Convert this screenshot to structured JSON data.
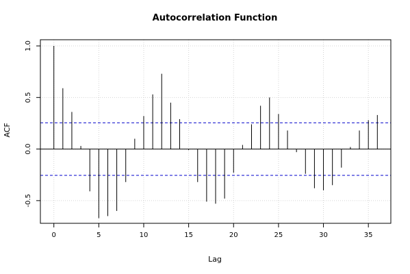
{
  "chart_data": {
    "type": "bar",
    "style": "spikes",
    "title": "Autocorrelation Function",
    "xlabel": "Lag",
    "ylabel": "ACF",
    "xlim": [
      -1.5,
      37.5
    ],
    "ylim": [
      -0.72,
      1.06
    ],
    "xticks": [
      0,
      5,
      10,
      15,
      20,
      25,
      30,
      35
    ],
    "yticks": [
      -0.5,
      0.0,
      0.5,
      1.0
    ],
    "ytick_labels": [
      "-0.5",
      "0.0",
      "0.5",
      "1.0"
    ],
    "grid": true,
    "x": [
      0,
      1,
      2,
      3,
      4,
      5,
      6,
      7,
      8,
      9,
      10,
      11,
      12,
      13,
      14,
      15,
      16,
      17,
      18,
      19,
      20,
      21,
      22,
      23,
      24,
      25,
      26,
      27,
      28,
      29,
      30,
      31,
      32,
      33,
      34,
      35,
      36
    ],
    "values": [
      1.0,
      0.59,
      0.36,
      0.03,
      -0.41,
      -0.67,
      -0.65,
      -0.6,
      -0.32,
      0.1,
      0.32,
      0.53,
      0.73,
      0.45,
      0.29,
      -0.01,
      -0.32,
      -0.51,
      -0.53,
      -0.48,
      -0.23,
      0.04,
      0.24,
      0.42,
      0.5,
      0.34,
      0.18,
      -0.03,
      -0.24,
      -0.38,
      -0.4,
      -0.35,
      -0.18,
      0.02,
      0.18,
      0.28,
      0.33
    ],
    "confidence_band": [
      -0.255,
      0.255
    ],
    "colors": {
      "spike": "#000000",
      "band": "#0000cc",
      "grid": "#d3d3d3",
      "zero": "#000000"
    }
  }
}
